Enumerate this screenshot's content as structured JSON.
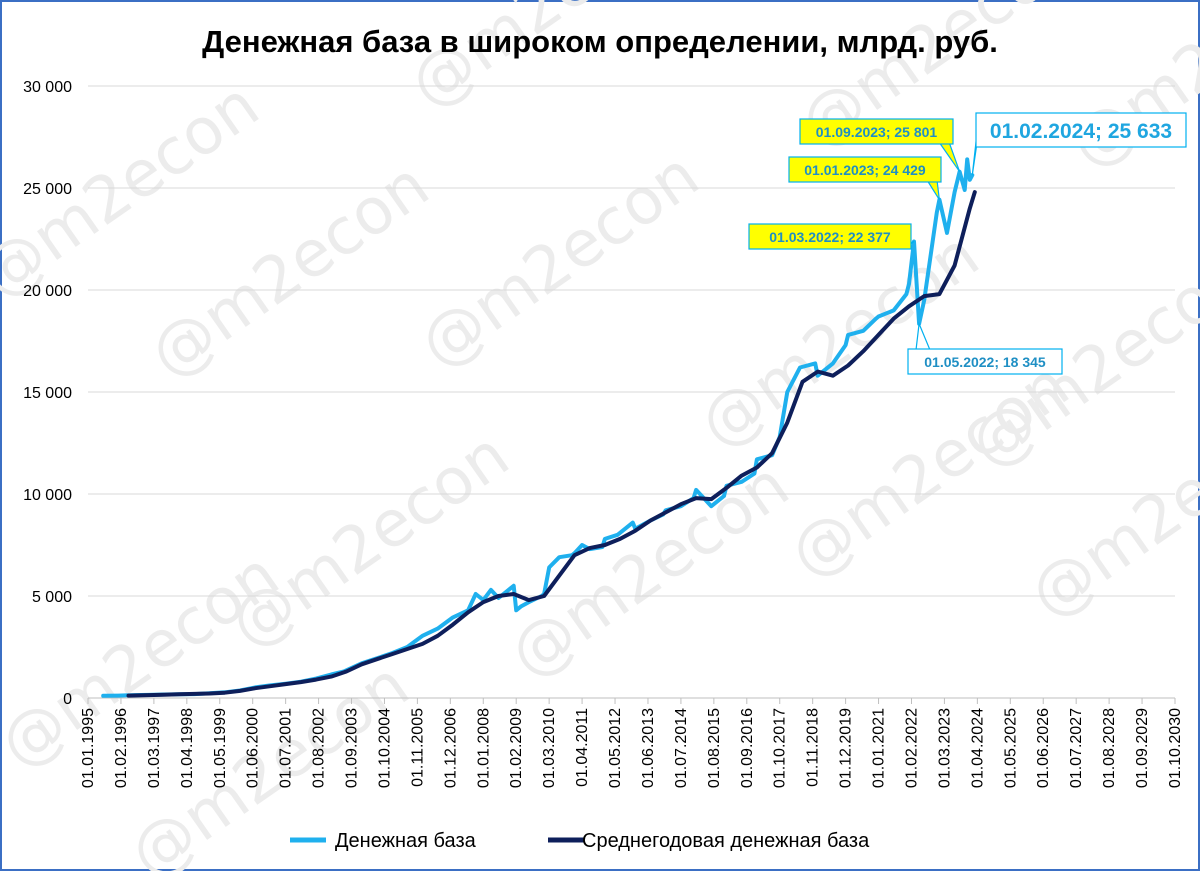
{
  "chart_data": {
    "type": "line",
    "title": "Денежная база в широком определении, млрд. руб.",
    "xlabel": "",
    "ylabel": "",
    "ylim": [
      0,
      30000
    ],
    "yticks": [
      0,
      5000,
      10000,
      15000,
      20000,
      25000,
      30000
    ],
    "ytick_labels": [
      "0",
      "5 000",
      "10 000",
      "15 000",
      "20 000",
      "25 000",
      "30 000"
    ],
    "x_range": [
      "1995-01-01",
      "2030-10-01"
    ],
    "xtick_labels": [
      "01.01.1995",
      "01.02.1996",
      "01.03.1997",
      "01.04.1998",
      "01.05.1999",
      "01.06.2000",
      "01.07.2001",
      "01.08.2002",
      "01.09.2003",
      "01.10.2004",
      "01.11.2005",
      "01.12.2006",
      "01.01.2008",
      "01.02.2009",
      "01.03.2010",
      "01.04.2011",
      "01.05.2012",
      "01.06.2013",
      "01.07.2014",
      "01.08.2015",
      "01.09.2016",
      "01.10.2017",
      "01.11.2018",
      "01.12.2019",
      "01.01.2021",
      "01.02.2022",
      "01.03.2023",
      "01.04.2024",
      "01.05.2025",
      "01.06.2026",
      "01.07.2027",
      "01.08.2028",
      "01.09.2029",
      "01.10.2030"
    ],
    "grid": true,
    "legend_position": "bottom",
    "series": [
      {
        "name": "Денежная база",
        "color": "#1fb0ee",
        "x": [
          "1995-07",
          "1996-01",
          "1996-07",
          "1997-01",
          "1997-07",
          "1998-01",
          "1998-07",
          "1999-01",
          "1999-07",
          "2000-01",
          "2000-07",
          "2001-01",
          "2001-07",
          "2002-01",
          "2002-07",
          "2003-01",
          "2003-06",
          "2004-01",
          "2004-06",
          "2005-01",
          "2005-07",
          "2006-01",
          "2006-07",
          "2007-01",
          "2007-07",
          "2007-10",
          "2008-01",
          "2008-04",
          "2008-07",
          "2008-10",
          "2009-01",
          "2009-02",
          "2009-04",
          "2009-07",
          "2009-12",
          "2010-01",
          "2010-03",
          "2010-07",
          "2010-12",
          "2011-01",
          "2011-04",
          "2011-07",
          "2011-12",
          "2012-01",
          "2012-06",
          "2012-12",
          "2013-01",
          "2013-07",
          "2013-12",
          "2014-01",
          "2014-07",
          "2014-12",
          "2015-01",
          "2015-07",
          "2015-12",
          "2016-01",
          "2016-07",
          "2016-12",
          "2017-01",
          "2017-07",
          "2017-10",
          "2018-01",
          "2018-06",
          "2018-12",
          "2019-01",
          "2019-07",
          "2019-12",
          "2020-01",
          "2020-07",
          "2020-12",
          "2021-01",
          "2021-07",
          "2021-12",
          "2022-01",
          "2022-03",
          "2022-05",
          "2022-07",
          "2022-12",
          "2023-01",
          "2023-04",
          "2023-07",
          "2023-09",
          "2023-11",
          "2023-12",
          "2024-01",
          "2024-02"
        ],
        "values": [
          110,
          120,
          140,
          150,
          170,
          180,
          190,
          230,
          280,
          370,
          520,
          620,
          700,
          800,
          950,
          1150,
          1300,
          1700,
          1900,
          2200,
          2500,
          3050,
          3400,
          3950,
          4300,
          5100,
          4800,
          5300,
          4900,
          5200,
          5500,
          4300,
          4500,
          4700,
          5000,
          5100,
          6400,
          6900,
          7000,
          7100,
          7500,
          7300,
          7400,
          7800,
          8000,
          8600,
          8300,
          8700,
          9000,
          9200,
          9400,
          9800,
          10200,
          9400,
          9900,
          10400,
          10600,
          11000,
          11700,
          11900,
          12800,
          15000,
          16200,
          16400,
          15800,
          16400,
          17300,
          17800,
          18000,
          18600,
          18700,
          19000,
          19800,
          20300,
          22377,
          18345,
          19500,
          23800,
          24429,
          22800,
          24800,
          25801,
          24900,
          26400,
          25400,
          25633
        ]
      },
      {
        "name": "Среднегодовая денежная база",
        "color": "#0e1f5b",
        "x": [
          "1996-05",
          "1997-01",
          "1997-07",
          "1998-01",
          "1998-07",
          "1999-01",
          "1999-07",
          "2000-01",
          "2000-07",
          "2001-01",
          "2001-07",
          "2002-01",
          "2002-07",
          "2003-01",
          "2003-07",
          "2004-01",
          "2004-07",
          "2005-01",
          "2005-07",
          "2006-01",
          "2006-07",
          "2007-01",
          "2007-07",
          "2008-01",
          "2008-07",
          "2009-01",
          "2009-07",
          "2010-01",
          "2010-07",
          "2011-01",
          "2011-07",
          "2012-01",
          "2012-07",
          "2013-01",
          "2013-07",
          "2014-01",
          "2014-07",
          "2015-01",
          "2015-07",
          "2016-01",
          "2016-07",
          "2017-01",
          "2017-07",
          "2018-01",
          "2018-07",
          "2019-01",
          "2019-07",
          "2020-01",
          "2020-07",
          "2021-01",
          "2021-07",
          "2022-01",
          "2022-07",
          "2023-01",
          "2023-07",
          "2024-01",
          "2024-03"
        ],
        "values": [
          120,
          140,
          160,
          180,
          200,
          220,
          260,
          350,
          480,
          580,
          680,
          780,
          900,
          1050,
          1300,
          1650,
          1900,
          2150,
          2400,
          2650,
          3050,
          3600,
          4200,
          4700,
          5000,
          5100,
          4800,
          5000,
          6000,
          7000,
          7350,
          7500,
          7800,
          8200,
          8700,
          9100,
          9500,
          9800,
          9750,
          10300,
          10900,
          11300,
          12000,
          13500,
          15500,
          16000,
          15800,
          16300,
          17000,
          17800,
          18600,
          19200,
          19700,
          19800,
          21200,
          24000,
          24800
        ]
      }
    ],
    "annotations": [
      {
        "label": "01.03.2022;  22 377",
        "x": "2022-03",
        "y": 22377
      },
      {
        "label": "01.05.2022;  18 345",
        "x": "2022-05",
        "y": 18345
      },
      {
        "label": "01.01.2023;  24 429",
        "x": "2023-01",
        "y": 24429
      },
      {
        "label": "01.09.2023;  25 801",
        "x": "2023-09",
        "y": 25801
      },
      {
        "label": "01.02.2024;  25 633",
        "x": "2024-02",
        "y": 25633
      }
    ]
  },
  "watermark": "@m2econ",
  "colors": {
    "frame": "#3b6fc4",
    "callout_fill": "#ffff00",
    "callout_border": "#00b0f0"
  }
}
